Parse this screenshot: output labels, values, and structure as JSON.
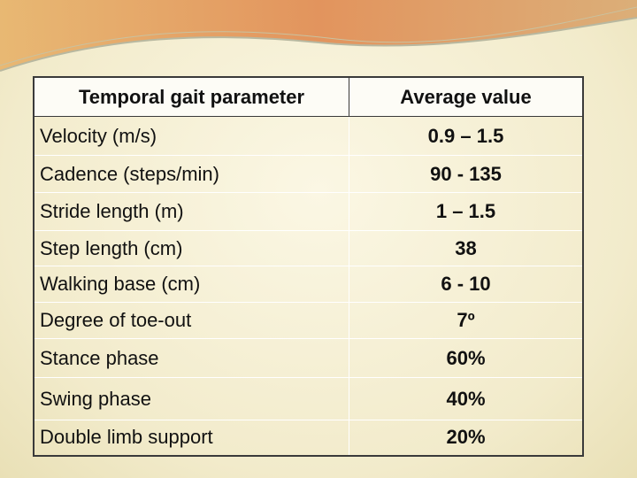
{
  "table": {
    "header": [
      "Temporal gait parameter",
      "Average value"
    ],
    "rows": [
      [
        "Velocity (m/s)",
        "0.9 – 1.5"
      ],
      [
        "Cadence (steps/min)",
        "90 - 135"
      ],
      [
        "Stride length (m)",
        "1 – 1.5"
      ],
      [
        "Step length (cm)",
        "38"
      ],
      [
        "Walking base (cm)",
        "6 - 10"
      ],
      [
        "Degree of toe-out",
        "7º"
      ],
      [
        "Stance phase",
        "60%"
      ],
      [
        "Swing phase",
        "40%"
      ],
      [
        "Double limb support",
        "20%"
      ]
    ]
  }
}
